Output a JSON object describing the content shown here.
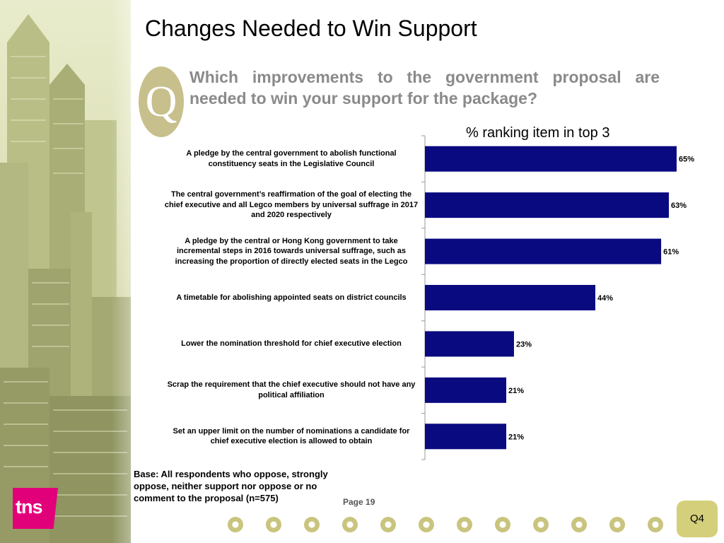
{
  "header": {
    "title": "Changes Needed to Win Support",
    "q_icon_letter": "Q",
    "question": "Which improvements to the government proposal are needed to win your support for the package?"
  },
  "chart_data": {
    "type": "bar",
    "orientation": "horizontal",
    "title": "% ranking item in top 3",
    "categories": [
      "A pledge by the central government to abolish functional constituency seats in the Legislative Council",
      "The central government’s reaffirmation of the goal of electing the chief executive and all Legco members by universal suffrage in 2017 and 2020 respectively",
      "A pledge by the central or Hong Kong government to take incremental steps in 2016 towards universal suffrage, such as increasing the proportion of directly elected seats in the Legco",
      "A timetable for abolishing appointed seats on district councils",
      "Lower the nomination threshold for chief executive election",
      "Scrap the requirement that the chief executive should not have any political affiliation",
      "Set an upper limit on the number of nominations a candidate for chief executive election is allowed to obtain"
    ],
    "values": [
      65,
      63,
      61,
      44,
      23,
      21,
      21
    ],
    "value_labels": [
      "65%",
      "63%",
      "61%",
      "44%",
      "23%",
      "21%",
      "21%"
    ],
    "xlim": [
      0,
      70
    ],
    "bar_color": "#0a0a80",
    "grid": false
  },
  "footer": {
    "base_note": "Base: All respondents who oppose, strongly oppose, neither support nor oppose or no comment to the proposal (n=575)",
    "page": "Page 19",
    "logo_text": "tns",
    "question_code": "Q4"
  },
  "colors": {
    "accent_pink": "#e2007a",
    "olive": "#c7c08c",
    "question_gray": "#8a8a8a"
  }
}
